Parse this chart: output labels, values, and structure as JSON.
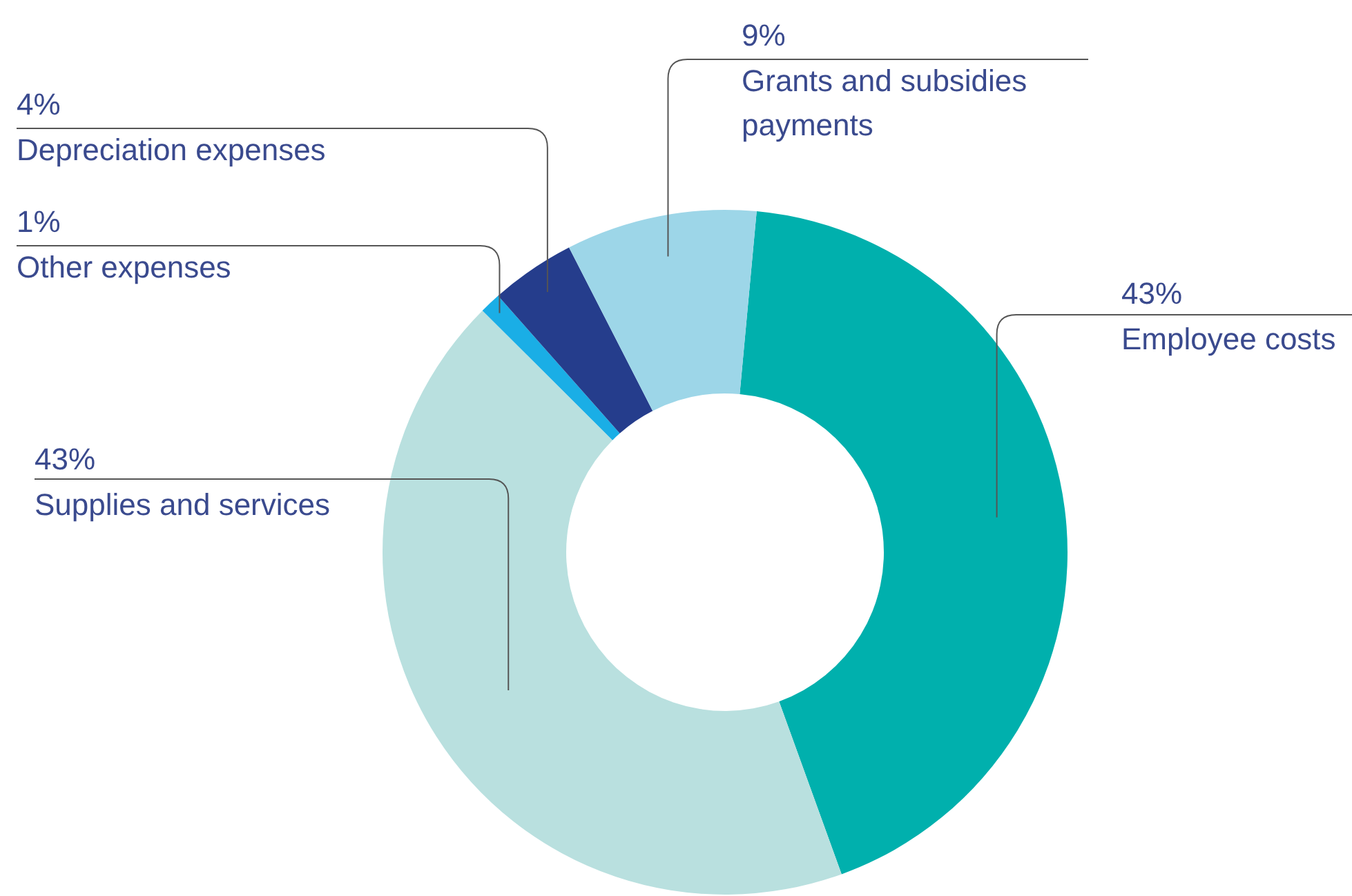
{
  "chart_data": {
    "type": "donut",
    "categories": [
      "Employee costs",
      "Supplies and services",
      "Other expenses",
      "Depreciation expenses",
      "Grants and subsidies payments"
    ],
    "values": [
      43,
      43,
      1,
      4,
      9
    ],
    "value_labels": [
      "43%",
      "43%",
      "1%",
      "4%",
      "9%"
    ],
    "colors": [
      "#00b0ad",
      "#b9e0df",
      "#1aaee6",
      "#253d8c",
      "#9dd6e8"
    ],
    "legend": false
  }
}
